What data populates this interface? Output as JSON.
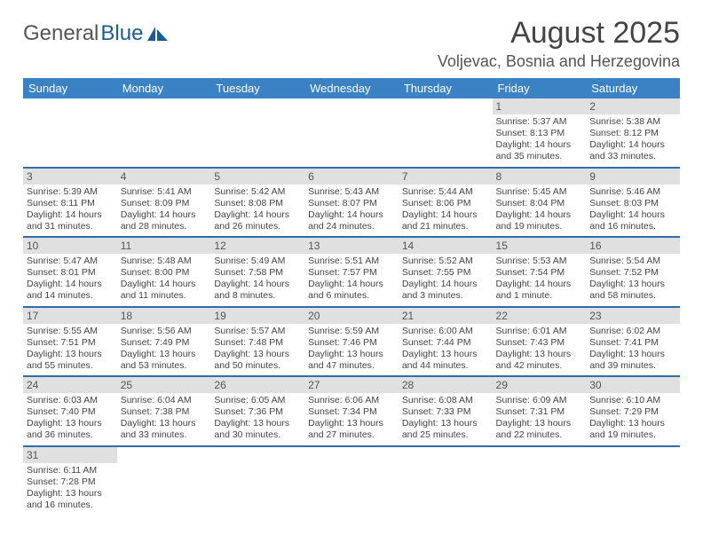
{
  "brand": {
    "part1": "General",
    "part2": "Blue"
  },
  "title": "August 2025",
  "location": "Voljevac, Bosnia and Herzegovina",
  "colors": {
    "header_bg": "#3b82c4",
    "row_sep": "#2f6ea8",
    "daynum_bg": "#e0e0e0"
  },
  "week_headers": [
    "Sunday",
    "Monday",
    "Tuesday",
    "Wednesday",
    "Thursday",
    "Friday",
    "Saturday"
  ],
  "weeks": [
    [
      null,
      null,
      null,
      null,
      null,
      {
        "n": "1",
        "sr": "5:37 AM",
        "ss": "8:13 PM",
        "dl": "14 hours and 35 minutes."
      },
      {
        "n": "2",
        "sr": "5:38 AM",
        "ss": "8:12 PM",
        "dl": "14 hours and 33 minutes."
      }
    ],
    [
      {
        "n": "3",
        "sr": "5:39 AM",
        "ss": "8:11 PM",
        "dl": "14 hours and 31 minutes."
      },
      {
        "n": "4",
        "sr": "5:41 AM",
        "ss": "8:09 PM",
        "dl": "14 hours and 28 minutes."
      },
      {
        "n": "5",
        "sr": "5:42 AM",
        "ss": "8:08 PM",
        "dl": "14 hours and 26 minutes."
      },
      {
        "n": "6",
        "sr": "5:43 AM",
        "ss": "8:07 PM",
        "dl": "14 hours and 24 minutes."
      },
      {
        "n": "7",
        "sr": "5:44 AM",
        "ss": "8:06 PM",
        "dl": "14 hours and 21 minutes."
      },
      {
        "n": "8",
        "sr": "5:45 AM",
        "ss": "8:04 PM",
        "dl": "14 hours and 19 minutes."
      },
      {
        "n": "9",
        "sr": "5:46 AM",
        "ss": "8:03 PM",
        "dl": "14 hours and 16 minutes."
      }
    ],
    [
      {
        "n": "10",
        "sr": "5:47 AM",
        "ss": "8:01 PM",
        "dl": "14 hours and 14 minutes."
      },
      {
        "n": "11",
        "sr": "5:48 AM",
        "ss": "8:00 PM",
        "dl": "14 hours and 11 minutes."
      },
      {
        "n": "12",
        "sr": "5:49 AM",
        "ss": "7:58 PM",
        "dl": "14 hours and 8 minutes."
      },
      {
        "n": "13",
        "sr": "5:51 AM",
        "ss": "7:57 PM",
        "dl": "14 hours and 6 minutes."
      },
      {
        "n": "14",
        "sr": "5:52 AM",
        "ss": "7:55 PM",
        "dl": "14 hours and 3 minutes."
      },
      {
        "n": "15",
        "sr": "5:53 AM",
        "ss": "7:54 PM",
        "dl": "14 hours and 1 minute."
      },
      {
        "n": "16",
        "sr": "5:54 AM",
        "ss": "7:52 PM",
        "dl": "13 hours and 58 minutes."
      }
    ],
    [
      {
        "n": "17",
        "sr": "5:55 AM",
        "ss": "7:51 PM",
        "dl": "13 hours and 55 minutes."
      },
      {
        "n": "18",
        "sr": "5:56 AM",
        "ss": "7:49 PM",
        "dl": "13 hours and 53 minutes."
      },
      {
        "n": "19",
        "sr": "5:57 AM",
        "ss": "7:48 PM",
        "dl": "13 hours and 50 minutes."
      },
      {
        "n": "20",
        "sr": "5:59 AM",
        "ss": "7:46 PM",
        "dl": "13 hours and 47 minutes."
      },
      {
        "n": "21",
        "sr": "6:00 AM",
        "ss": "7:44 PM",
        "dl": "13 hours and 44 minutes."
      },
      {
        "n": "22",
        "sr": "6:01 AM",
        "ss": "7:43 PM",
        "dl": "13 hours and 42 minutes."
      },
      {
        "n": "23",
        "sr": "6:02 AM",
        "ss": "7:41 PM",
        "dl": "13 hours and 39 minutes."
      }
    ],
    [
      {
        "n": "24",
        "sr": "6:03 AM",
        "ss": "7:40 PM",
        "dl": "13 hours and 36 minutes."
      },
      {
        "n": "25",
        "sr": "6:04 AM",
        "ss": "7:38 PM",
        "dl": "13 hours and 33 minutes."
      },
      {
        "n": "26",
        "sr": "6:05 AM",
        "ss": "7:36 PM",
        "dl": "13 hours and 30 minutes."
      },
      {
        "n": "27",
        "sr": "6:06 AM",
        "ss": "7:34 PM",
        "dl": "13 hours and 27 minutes."
      },
      {
        "n": "28",
        "sr": "6:08 AM",
        "ss": "7:33 PM",
        "dl": "13 hours and 25 minutes."
      },
      {
        "n": "29",
        "sr": "6:09 AM",
        "ss": "7:31 PM",
        "dl": "13 hours and 22 minutes."
      },
      {
        "n": "30",
        "sr": "6:10 AM",
        "ss": "7:29 PM",
        "dl": "13 hours and 19 minutes."
      }
    ],
    [
      {
        "n": "31",
        "sr": "6:11 AM",
        "ss": "7:28 PM",
        "dl": "13 hours and 16 minutes."
      },
      null,
      null,
      null,
      null,
      null,
      null
    ]
  ],
  "labels": {
    "sunrise": "Sunrise:",
    "sunset": "Sunset:",
    "daylight": "Daylight:"
  }
}
